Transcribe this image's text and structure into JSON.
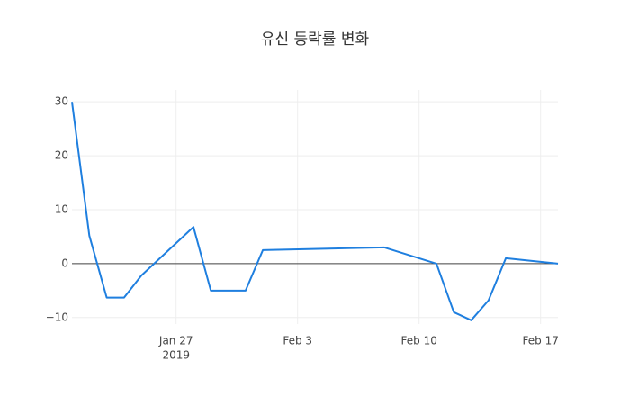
{
  "chart_data": {
    "type": "line",
    "title": "유신 등락률 변화",
    "x": [
      "2019-01-21",
      "2019-01-22",
      "2019-01-23",
      "2019-01-24",
      "2019-01-25",
      "2019-01-28",
      "2019-01-29",
      "2019-01-31",
      "2019-02-01",
      "2019-02-08",
      "2019-02-11",
      "2019-02-12",
      "2019-02-13",
      "2019-02-14",
      "2019-02-15",
      "2019-02-18"
    ],
    "series": [
      {
        "name": "등락률",
        "color": "#1f7fdf",
        "values": [
          30,
          5.2,
          -6.3,
          -6.3,
          -2.2,
          6.8,
          -5,
          -5,
          2.5,
          3.0,
          0,
          -9,
          -10.5,
          -6.8,
          1.0,
          0
        ]
      }
    ],
    "xlim": [
      "2019-01-21",
      "2019-02-18"
    ],
    "xticks": [
      {
        "value": "2019-01-27",
        "label": "Jan 27"
      },
      {
        "value": "2019-02-03",
        "label": "Feb 3"
      },
      {
        "value": "2019-02-10",
        "label": "Feb 10"
      },
      {
        "value": "2019-02-17",
        "label": "Feb 17"
      }
    ],
    "xaxis_year": "2019",
    "ylim": [
      -11.2,
      32.2
    ],
    "yticks": [
      {
        "value": -10,
        "label": "−10"
      },
      0,
      10,
      20,
      30
    ],
    "grid": true,
    "zero_line": true
  }
}
